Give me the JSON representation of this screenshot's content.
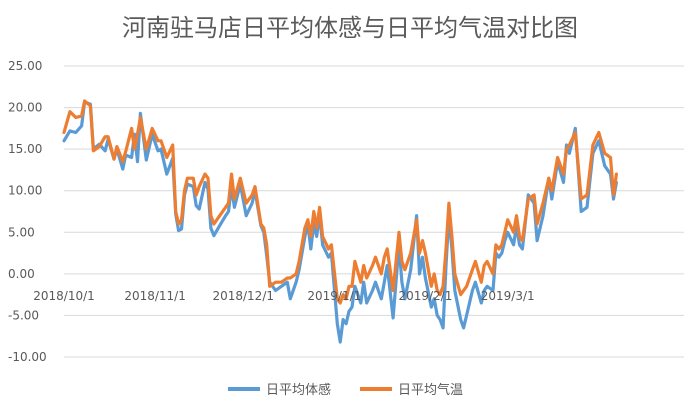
{
  "chart_data": {
    "type": "line",
    "title": "河南驻马店日平均体感与日平均气温对比图",
    "xlabel": "",
    "ylabel": "",
    "ylim": [
      -10,
      25
    ],
    "xlim": [
      "2018-10-01",
      "2019-04-30"
    ],
    "y_ticks": [
      "25.00",
      "20.00",
      "15.00",
      "10.00",
      "5.00",
      "0.00",
      "-5.00",
      "-10.00"
    ],
    "y_tick_values": [
      25,
      20,
      15,
      10,
      5,
      0,
      -5,
      -10
    ],
    "x_ticks": [
      {
        "date": "2018-10-01",
        "label": "2018/10/1"
      },
      {
        "date": "2018-11-01",
        "label": "2018/11/1"
      },
      {
        "date": "2018-12-01",
        "label": "2018/12/1"
      },
      {
        "date": "2019-01-01",
        "label": "2019/1/1"
      },
      {
        "date": "2019-02-01",
        "label": "2019/2/1"
      },
      {
        "date": "2019-03-01",
        "label": "2019/3/1"
      }
    ],
    "grid": true,
    "legend_position": "bottom",
    "series": [
      {
        "name": "日平均体感",
        "color": "#5b9bd5",
        "points": [
          [
            "2018-10-01",
            16.0
          ],
          [
            "2018-10-03",
            17.2
          ],
          [
            "2018-10-05",
            17.0
          ],
          [
            "2018-10-07",
            17.8
          ],
          [
            "2018-10-08",
            20.7
          ],
          [
            "2018-10-10",
            20.4
          ],
          [
            "2018-10-11",
            15.0
          ],
          [
            "2018-10-13",
            15.6
          ],
          [
            "2018-10-15",
            14.8
          ],
          [
            "2018-10-16",
            16.2
          ],
          [
            "2018-10-18",
            13.8
          ],
          [
            "2018-10-19",
            15.0
          ],
          [
            "2018-10-21",
            12.6
          ],
          [
            "2018-10-22",
            14.3
          ],
          [
            "2018-10-24",
            14.0
          ],
          [
            "2018-10-25",
            16.8
          ],
          [
            "2018-10-26",
            13.5
          ],
          [
            "2018-10-27",
            19.3
          ],
          [
            "2018-10-29",
            13.7
          ],
          [
            "2018-10-31",
            16.8
          ],
          [
            "2018-11-02",
            14.8
          ],
          [
            "2018-11-03",
            15.0
          ],
          [
            "2018-11-05",
            12.0
          ],
          [
            "2018-11-07",
            13.9
          ],
          [
            "2018-11-08",
            7.2
          ],
          [
            "2018-11-09",
            5.2
          ],
          [
            "2018-11-10",
            5.4
          ],
          [
            "2018-11-11",
            9.5
          ],
          [
            "2018-11-12",
            10.8
          ],
          [
            "2018-11-14",
            10.5
          ],
          [
            "2018-11-15",
            8.2
          ],
          [
            "2018-11-16",
            7.8
          ],
          [
            "2018-11-18",
            11.0
          ],
          [
            "2018-11-19",
            10.2
          ],
          [
            "2018-11-20",
            5.5
          ],
          [
            "2018-11-21",
            4.6
          ],
          [
            "2018-11-23",
            5.8
          ],
          [
            "2018-11-25",
            7.0
          ],
          [
            "2018-11-26",
            7.5
          ],
          [
            "2018-11-27",
            10.5
          ],
          [
            "2018-11-28",
            8.0
          ],
          [
            "2018-11-30",
            10.8
          ],
          [
            "2018-12-02",
            7.0
          ],
          [
            "2018-12-04",
            8.5
          ],
          [
            "2018-12-05",
            10.0
          ],
          [
            "2018-12-07",
            5.8
          ],
          [
            "2018-12-08",
            5.0
          ],
          [
            "2018-12-09",
            2.2
          ],
          [
            "2018-12-10",
            -1.0
          ],
          [
            "2018-12-12",
            -2.0
          ],
          [
            "2018-12-14",
            -1.5
          ],
          [
            "2018-12-16",
            -1.0
          ],
          [
            "2018-12-17",
            -3.0
          ],
          [
            "2018-12-19",
            -1.0
          ],
          [
            "2018-12-20",
            0.5
          ],
          [
            "2018-12-22",
            4.5
          ],
          [
            "2018-12-23",
            6.0
          ],
          [
            "2018-12-24",
            3.0
          ],
          [
            "2018-12-25",
            6.0
          ],
          [
            "2018-12-26",
            4.5
          ],
          [
            "2018-12-27",
            7.2
          ],
          [
            "2018-12-28",
            3.5
          ],
          [
            "2018-12-30",
            2.0
          ],
          [
            "2018-12-31",
            2.5
          ],
          [
            "2019-01-02",
            -6.0
          ],
          [
            "2019-01-03",
            -8.2
          ],
          [
            "2019-01-04",
            -5.5
          ],
          [
            "2019-01-05",
            -6.0
          ],
          [
            "2019-01-06",
            -4.5
          ],
          [
            "2019-01-07",
            -4.0
          ],
          [
            "2019-01-08",
            -1.5
          ],
          [
            "2019-01-10",
            -3.5
          ],
          [
            "2019-01-11",
            -1.0
          ],
          [
            "2019-01-12",
            -3.5
          ],
          [
            "2019-01-14",
            -2.0
          ],
          [
            "2019-01-15",
            -1.0
          ],
          [
            "2019-01-17",
            -3.0
          ],
          [
            "2019-01-18",
            -1.0
          ],
          [
            "2019-01-19",
            1.0
          ],
          [
            "2019-01-21",
            -5.3
          ],
          [
            "2019-01-23",
            3.5
          ],
          [
            "2019-01-24",
            -1.0
          ],
          [
            "2019-01-25",
            -3.0
          ],
          [
            "2019-01-27",
            0.5
          ],
          [
            "2019-01-29",
            7.0
          ],
          [
            "2019-01-30",
            0.0
          ],
          [
            "2019-01-31",
            2.0
          ],
          [
            "2019-02-01",
            -0.5
          ],
          [
            "2019-02-03",
            -4.0
          ],
          [
            "2019-02-04",
            -3.0
          ],
          [
            "2019-02-05",
            -5.0
          ],
          [
            "2019-02-06",
            -5.5
          ],
          [
            "2019-02-07",
            -6.5
          ],
          [
            "2019-02-08",
            1.0
          ],
          [
            "2019-02-09",
            7.0
          ],
          [
            "2019-02-10",
            3.0
          ],
          [
            "2019-02-11",
            -2.0
          ],
          [
            "2019-02-13",
            -5.5
          ],
          [
            "2019-02-14",
            -6.5
          ],
          [
            "2019-02-15",
            -5.0
          ],
          [
            "2019-02-17",
            -2.0
          ],
          [
            "2019-02-18",
            -1.0
          ],
          [
            "2019-02-20",
            -3.5
          ],
          [
            "2019-02-21",
            -2.0
          ],
          [
            "2019-02-22",
            -1.5
          ],
          [
            "2019-02-24",
            -2.0
          ],
          [
            "2019-02-25",
            2.5
          ],
          [
            "2019-02-26",
            2.0
          ],
          [
            "2019-02-27",
            2.5
          ],
          [
            "2019-02-28",
            4.0
          ],
          [
            "2019-03-01",
            5.0
          ],
          [
            "2019-03-03",
            3.5
          ],
          [
            "2019-03-04",
            5.8
          ],
          [
            "2019-03-05",
            3.5
          ],
          [
            "2019-03-06",
            3.0
          ],
          [
            "2019-03-08",
            9.5
          ],
          [
            "2019-03-10",
            8.5
          ],
          [
            "2019-03-11",
            4.0
          ],
          [
            "2019-03-13",
            7.0
          ],
          [
            "2019-03-15",
            11.5
          ],
          [
            "2019-03-16",
            9.0
          ],
          [
            "2019-03-18",
            13.5
          ],
          [
            "2019-03-20",
            11.0
          ],
          [
            "2019-03-21",
            15.5
          ],
          [
            "2019-03-22",
            14.5
          ],
          [
            "2019-03-24",
            17.5
          ],
          [
            "2019-03-26",
            7.5
          ],
          [
            "2019-03-28",
            8.0
          ],
          [
            "2019-03-30",
            14.5
          ],
          [
            "2019-04-01",
            16.0
          ],
          [
            "2019-04-03",
            13.0
          ],
          [
            "2019-04-05",
            12.0
          ],
          [
            "2019-04-06",
            9.0
          ],
          [
            "2019-04-07",
            11.0
          ]
        ]
      },
      {
        "name": "日平均气温",
        "color": "#ed7d31",
        "points": [
          [
            "2018-10-01",
            17.0
          ],
          [
            "2018-10-03",
            19.5
          ],
          [
            "2018-10-05",
            18.8
          ],
          [
            "2018-10-07",
            19.0
          ],
          [
            "2018-10-08",
            20.8
          ],
          [
            "2018-10-10",
            20.2
          ],
          [
            "2018-10-11",
            14.8
          ],
          [
            "2018-10-13",
            15.3
          ],
          [
            "2018-10-15",
            16.5
          ],
          [
            "2018-10-16",
            16.5
          ],
          [
            "2018-10-18",
            13.8
          ],
          [
            "2018-10-19",
            15.3
          ],
          [
            "2018-10-21",
            13.5
          ],
          [
            "2018-10-22",
            14.7
          ],
          [
            "2018-10-24",
            17.5
          ],
          [
            "2018-10-25",
            15.0
          ],
          [
            "2018-10-26",
            16.8
          ],
          [
            "2018-10-27",
            18.8
          ],
          [
            "2018-10-29",
            15.0
          ],
          [
            "2018-10-31",
            17.5
          ],
          [
            "2018-11-02",
            16.0
          ],
          [
            "2018-11-03",
            16.0
          ],
          [
            "2018-11-05",
            14.0
          ],
          [
            "2018-11-07",
            15.5
          ],
          [
            "2018-11-08",
            7.5
          ],
          [
            "2018-11-09",
            6.0
          ],
          [
            "2018-11-10",
            6.5
          ],
          [
            "2018-11-11",
            10.0
          ],
          [
            "2018-11-12",
            11.5
          ],
          [
            "2018-11-14",
            11.5
          ],
          [
            "2018-11-15",
            9.5
          ],
          [
            "2018-11-16",
            10.5
          ],
          [
            "2018-11-18",
            12.0
          ],
          [
            "2018-11-19",
            11.5
          ],
          [
            "2018-11-20",
            7.0
          ],
          [
            "2018-11-21",
            6.0
          ],
          [
            "2018-11-23",
            7.0
          ],
          [
            "2018-11-25",
            8.0
          ],
          [
            "2018-11-26",
            8.5
          ],
          [
            "2018-11-27",
            12.0
          ],
          [
            "2018-11-28",
            9.0
          ],
          [
            "2018-11-30",
            11.5
          ],
          [
            "2018-12-02",
            8.5
          ],
          [
            "2018-12-04",
            9.5
          ],
          [
            "2018-12-05",
            10.5
          ],
          [
            "2018-12-07",
            6.0
          ],
          [
            "2018-12-08",
            5.5
          ],
          [
            "2018-12-09",
            3.5
          ],
          [
            "2018-12-10",
            -1.5
          ],
          [
            "2018-12-12",
            -1.0
          ],
          [
            "2018-12-14",
            -1.0
          ],
          [
            "2018-12-16",
            -0.5
          ],
          [
            "2018-12-17",
            -0.5
          ],
          [
            "2018-12-19",
            0.0
          ],
          [
            "2018-12-20",
            1.5
          ],
          [
            "2018-12-22",
            5.5
          ],
          [
            "2018-12-23",
            6.5
          ],
          [
            "2018-12-24",
            4.5
          ],
          [
            "2018-12-25",
            7.5
          ],
          [
            "2018-12-26",
            5.5
          ],
          [
            "2018-12-27",
            8.0
          ],
          [
            "2018-12-28",
            4.5
          ],
          [
            "2018-12-30",
            3.0
          ],
          [
            "2018-12-31",
            3.5
          ],
          [
            "2019-01-02",
            -3.0
          ],
          [
            "2019-01-03",
            -3.5
          ],
          [
            "2019-01-04",
            -2.5
          ],
          [
            "2019-01-05",
            -3.0
          ],
          [
            "2019-01-06",
            -1.5
          ],
          [
            "2019-01-07",
            -1.5
          ],
          [
            "2019-01-08",
            1.5
          ],
          [
            "2019-01-10",
            -1.0
          ],
          [
            "2019-01-11",
            1.0
          ],
          [
            "2019-01-12",
            -0.5
          ],
          [
            "2019-01-14",
            1.0
          ],
          [
            "2019-01-15",
            2.0
          ],
          [
            "2019-01-17",
            0.0
          ],
          [
            "2019-01-18",
            2.0
          ],
          [
            "2019-01-19",
            3.0
          ],
          [
            "2019-01-21",
            -2.0
          ],
          [
            "2019-01-23",
            5.0
          ],
          [
            "2019-01-24",
            1.5
          ],
          [
            "2019-01-25",
            0.5
          ],
          [
            "2019-01-27",
            2.5
          ],
          [
            "2019-01-29",
            6.5
          ],
          [
            "2019-01-30",
            2.5
          ],
          [
            "2019-01-31",
            4.0
          ],
          [
            "2019-02-01",
            2.5
          ],
          [
            "2019-02-03",
            -1.5
          ],
          [
            "2019-02-04",
            0.0
          ],
          [
            "2019-02-05",
            -2.0
          ],
          [
            "2019-02-06",
            -2.5
          ],
          [
            "2019-02-07",
            -1.5
          ],
          [
            "2019-02-08",
            3.0
          ],
          [
            "2019-02-09",
            8.5
          ],
          [
            "2019-02-10",
            4.5
          ],
          [
            "2019-02-11",
            0.0
          ],
          [
            "2019-02-13",
            -2.5
          ],
          [
            "2019-02-14",
            -2.0
          ],
          [
            "2019-02-15",
            -1.5
          ],
          [
            "2019-02-17",
            0.5
          ],
          [
            "2019-02-18",
            1.5
          ],
          [
            "2019-02-20",
            -1.0
          ],
          [
            "2019-02-21",
            1.0
          ],
          [
            "2019-02-22",
            1.5
          ],
          [
            "2019-02-24",
            0.0
          ],
          [
            "2019-02-25",
            3.5
          ],
          [
            "2019-02-26",
            3.0
          ],
          [
            "2019-02-27",
            3.5
          ],
          [
            "2019-02-28",
            5.0
          ],
          [
            "2019-03-01",
            6.5
          ],
          [
            "2019-03-03",
            5.0
          ],
          [
            "2019-03-04",
            7.0
          ],
          [
            "2019-03-05",
            4.5
          ],
          [
            "2019-03-06",
            4.0
          ],
          [
            "2019-03-08",
            9.0
          ],
          [
            "2019-03-10",
            9.5
          ],
          [
            "2019-03-11",
            6.0
          ],
          [
            "2019-03-13",
            8.5
          ],
          [
            "2019-03-15",
            11.5
          ],
          [
            "2019-03-16",
            10.0
          ],
          [
            "2019-03-18",
            14.0
          ],
          [
            "2019-03-20",
            12.0
          ],
          [
            "2019-03-21",
            15.0
          ],
          [
            "2019-03-22",
            15.5
          ],
          [
            "2019-03-24",
            17.0
          ],
          [
            "2019-03-26",
            9.0
          ],
          [
            "2019-03-28",
            9.5
          ],
          [
            "2019-03-30",
            15.5
          ],
          [
            "2019-04-01",
            17.0
          ],
          [
            "2019-04-03",
            14.5
          ],
          [
            "2019-04-05",
            14.0
          ],
          [
            "2019-04-06",
            9.5
          ],
          [
            "2019-04-07",
            12.0
          ]
        ]
      }
    ]
  }
}
